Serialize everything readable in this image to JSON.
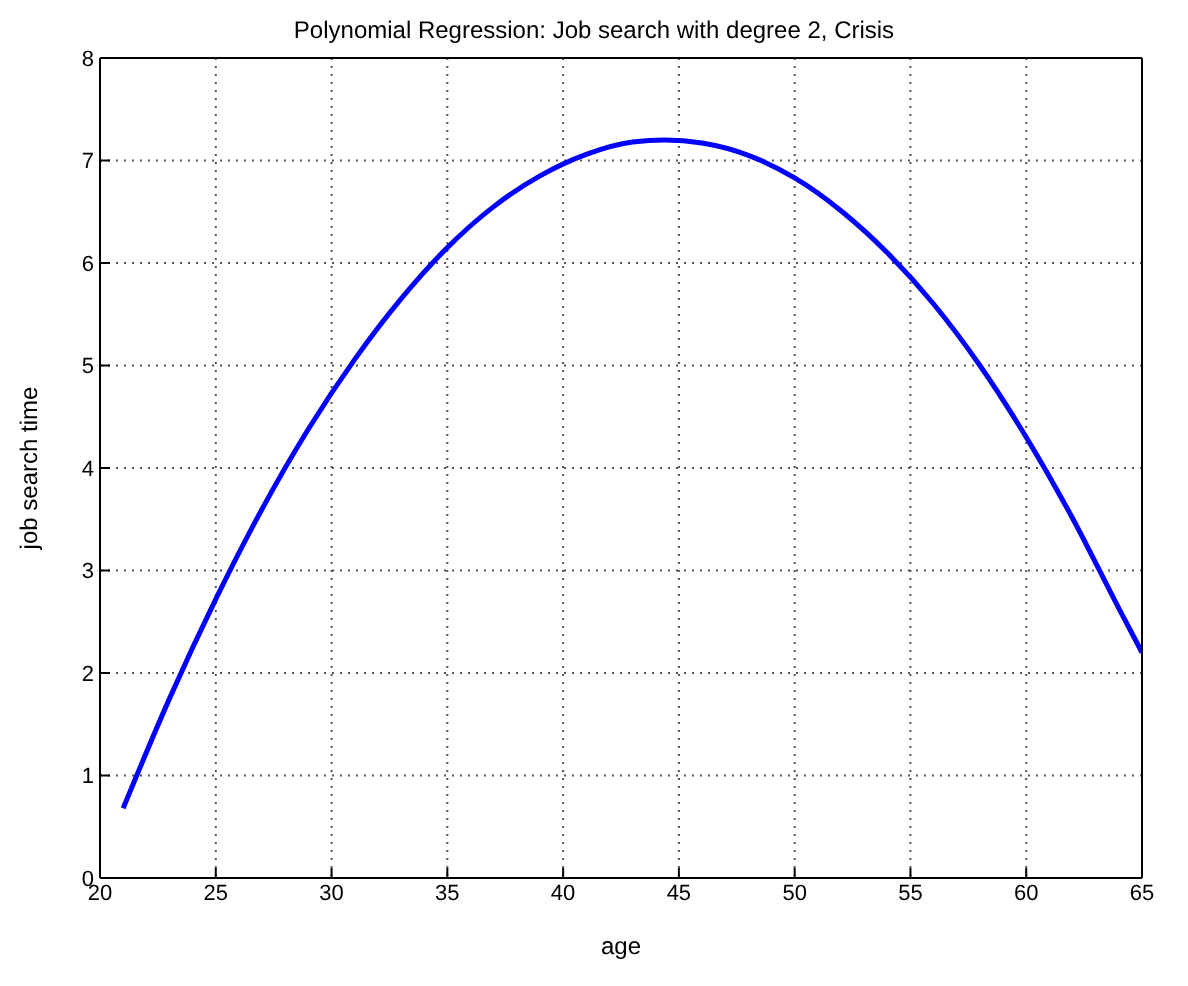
{
  "chart_data": {
    "type": "line",
    "title": "Polynomial Regression: Job search with degree 2, Crisis",
    "xlabel": "age",
    "ylabel": "job search time",
    "x": [
      21,
      23,
      25,
      27,
      29,
      31,
      33,
      35,
      37,
      39,
      41,
      43,
      44.4,
      46,
      48,
      50,
      52,
      54,
      56,
      58,
      60,
      62,
      64,
      65
    ],
    "series": [
      {
        "color": "#0000ff",
        "values": [
          0.68,
          1.75,
          2.72,
          3.6,
          4.38,
          5.06,
          5.65,
          6.15,
          6.55,
          6.85,
          7.06,
          7.18,
          7.2,
          7.17,
          7.05,
          6.83,
          6.51,
          6.1,
          5.6,
          5.0,
          4.3,
          3.51,
          2.63,
          2.2
        ]
      }
    ],
    "xlim": [
      20,
      65
    ],
    "xticks": [
      20,
      25,
      30,
      35,
      40,
      45,
      50,
      55,
      60,
      65
    ],
    "ylim": [
      0,
      8
    ],
    "yticks": [
      0,
      1,
      2,
      3,
      4,
      5,
      6,
      7,
      8
    ],
    "grid": true,
    "legend": false,
    "marker": "none",
    "line_style": "solid"
  }
}
